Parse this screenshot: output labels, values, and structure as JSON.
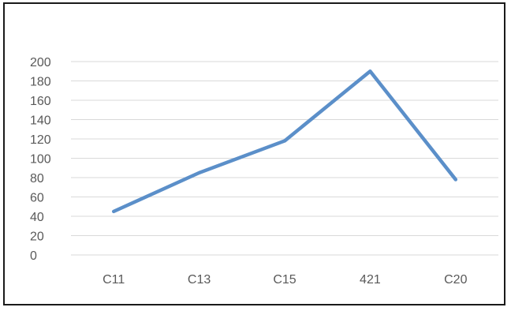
{
  "chart_data": {
    "type": "line",
    "categories": [
      "C11",
      "C13",
      "C15",
      "421",
      "C20"
    ],
    "series": [
      {
        "values": [
          45,
          85,
          118,
          190,
          78
        ]
      }
    ],
    "title": "",
    "xlabel": "",
    "ylabel": "",
    "ylim": [
      0,
      200
    ],
    "yticks": [
      0,
      20,
      40,
      60,
      80,
      100,
      120,
      140,
      160,
      180,
      200
    ],
    "grid": true,
    "legend": "none",
    "line_color": "#5b8fc9",
    "grid_color": "#d9d9d9",
    "text_color": "#595959"
  }
}
